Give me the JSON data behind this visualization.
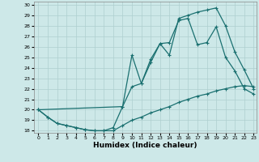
{
  "xlabel": "Humidex (Indice chaleur)",
  "ylabel": "",
  "xlim": [
    -0.5,
    23.3
  ],
  "ylim": [
    17.8,
    30.3
  ],
  "xticks": [
    0,
    1,
    2,
    3,
    4,
    5,
    6,
    7,
    8,
    9,
    10,
    11,
    12,
    13,
    14,
    15,
    16,
    17,
    18,
    19,
    20,
    21,
    22,
    23
  ],
  "yticks": [
    18,
    19,
    20,
    21,
    22,
    23,
    24,
    25,
    26,
    27,
    28,
    29,
    30
  ],
  "background_color": "#cde8e8",
  "grid_color": "#aecfcf",
  "line_color": "#1a7070",
  "line1_x": [
    0,
    1,
    2,
    3,
    4,
    5,
    6,
    7,
    8,
    9,
    10,
    11,
    12,
    13,
    14,
    15,
    16,
    17,
    18,
    19,
    20,
    21,
    22,
    23
  ],
  "line1_y": [
    20,
    19.3,
    18.7,
    18.5,
    18.3,
    18.1,
    18.0,
    18.0,
    18.0,
    18.5,
    19.0,
    19.3,
    19.7,
    20.0,
    20.3,
    20.7,
    21.0,
    21.3,
    21.5,
    21.8,
    22.0,
    22.2,
    22.3,
    22.2
  ],
  "line2_x": [
    0,
    1,
    2,
    3,
    4,
    5,
    6,
    7,
    8,
    9,
    10,
    11,
    12,
    13,
    14,
    15,
    16,
    17,
    18,
    19,
    20,
    21,
    22,
    23
  ],
  "line2_y": [
    20,
    19.3,
    18.7,
    18.5,
    18.3,
    18.1,
    18.0,
    18.0,
    18.3,
    20.3,
    22.2,
    22.5,
    24.5,
    26.3,
    26.4,
    28.5,
    28.7,
    26.2,
    26.4,
    27.9,
    25.0,
    23.7,
    22.0,
    21.5
  ],
  "line3_x": [
    0,
    9,
    10,
    11,
    12,
    13,
    14,
    15,
    16,
    17,
    18,
    19,
    20,
    21,
    22,
    23
  ],
  "line3_y": [
    20,
    20.3,
    25.2,
    22.5,
    24.8,
    26.3,
    25.2,
    28.7,
    29.0,
    29.3,
    29.5,
    29.7,
    28.0,
    25.5,
    23.8,
    22.0
  ]
}
